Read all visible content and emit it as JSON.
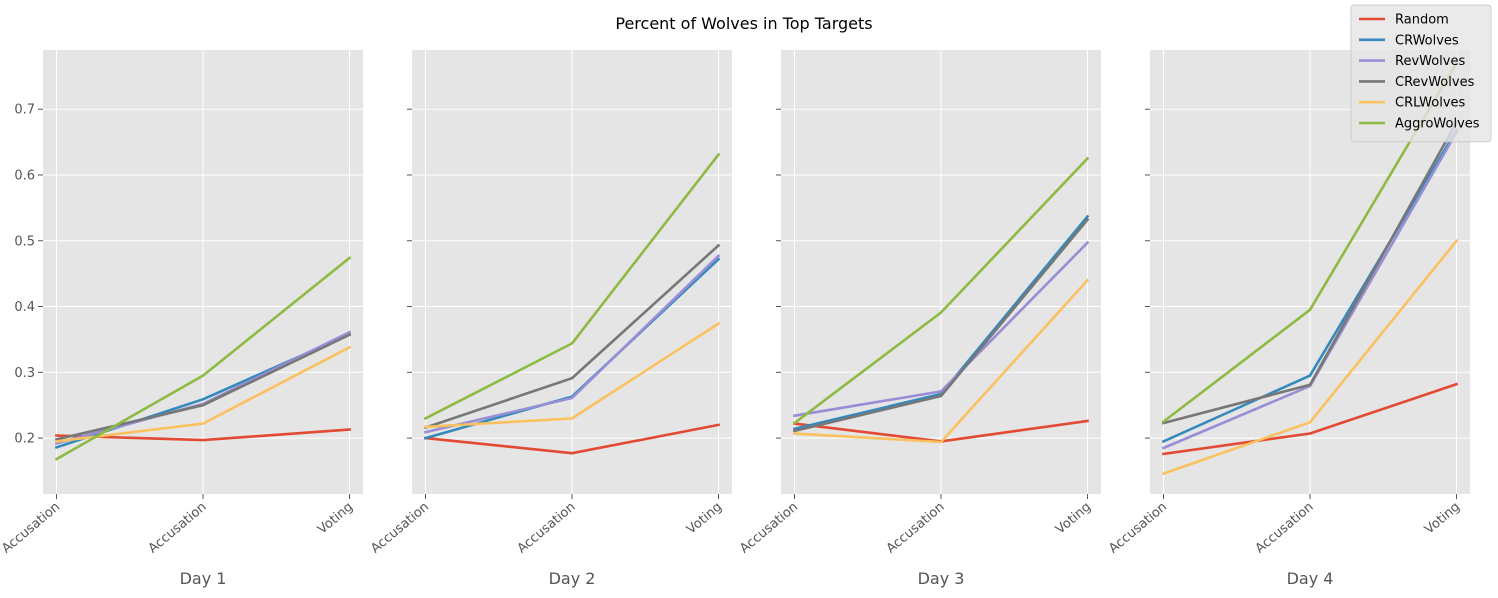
{
  "title": "Percent of Wolves in Top Targets",
  "chart_data": {
    "type": "line",
    "title": "Percent of Wolves in Top Targets",
    "ylim": [
      0.115,
      0.79
    ],
    "yticks": [
      0.2,
      0.3,
      0.4,
      0.5,
      0.6,
      0.7
    ],
    "shared_y": true,
    "grid": true,
    "legend_placement": "top-right",
    "categories": [
      "Accusation",
      "Accusation",
      "Voting"
    ],
    "series_styles": [
      {
        "name": "Random",
        "color": "#E24A33"
      },
      {
        "name": "CRWolves",
        "color": "#348ABD"
      },
      {
        "name": "RevWolves",
        "color": "#988ED5"
      },
      {
        "name": "CRevWolves",
        "color": "#777777"
      },
      {
        "name": "CRLWolves",
        "color": "#FBC15E"
      },
      {
        "name": "AggroWolves",
        "color": "#8EBA42"
      }
    ],
    "panels": [
      {
        "xlabel": "Day 1",
        "series": [
          {
            "name": "Random",
            "values": [
              0.204,
              0.197,
              0.213
            ]
          },
          {
            "name": "CRWolves",
            "values": [
              0.186,
              0.259,
              0.358
            ]
          },
          {
            "name": "RevWolves",
            "values": [
              0.192,
              0.252,
              0.361
            ]
          },
          {
            "name": "CRevWolves",
            "values": [
              0.198,
              0.25,
              0.357
            ]
          },
          {
            "name": "CRLWolves",
            "values": [
              0.195,
              0.222,
              0.338
            ]
          },
          {
            "name": "AggroWolves",
            "values": [
              0.168,
              0.295,
              0.474
            ]
          }
        ]
      },
      {
        "xlabel": "Day 2",
        "series": [
          {
            "name": "Random",
            "values": [
              0.2,
              0.177,
              0.22
            ]
          },
          {
            "name": "CRWolves",
            "values": [
              0.2,
              0.263,
              0.472
            ]
          },
          {
            "name": "RevWolves",
            "values": [
              0.209,
              0.261,
              0.477
            ]
          },
          {
            "name": "CRevWolves",
            "values": [
              0.216,
              0.291,
              0.493
            ]
          },
          {
            "name": "CRLWolves",
            "values": [
              0.217,
              0.23,
              0.374
            ]
          },
          {
            "name": "AggroWolves",
            "values": [
              0.23,
              0.344,
              0.631
            ]
          }
        ]
      },
      {
        "xlabel": "Day 3",
        "series": [
          {
            "name": "Random",
            "values": [
              0.222,
              0.195,
              0.226
            ]
          },
          {
            "name": "CRWolves",
            "values": [
              0.214,
              0.267,
              0.537
            ]
          },
          {
            "name": "RevWolves",
            "values": [
              0.234,
              0.271,
              0.497
            ]
          },
          {
            "name": "CRevWolves",
            "values": [
              0.211,
              0.264,
              0.532
            ]
          },
          {
            "name": "CRLWolves",
            "values": [
              0.207,
              0.194,
              0.44
            ]
          },
          {
            "name": "AggroWolves",
            "values": [
              0.223,
              0.391,
              0.625
            ]
          }
        ]
      },
      {
        "xlabel": "Day 4",
        "series": [
          {
            "name": "Random",
            "values": [
              0.176,
              0.207,
              0.282
            ]
          },
          {
            "name": "CRWolves",
            "values": [
              0.195,
              0.295,
              0.668
            ]
          },
          {
            "name": "RevWolves",
            "values": [
              0.185,
              0.279,
              0.665
            ]
          },
          {
            "name": "CRevWolves",
            "values": [
              0.223,
              0.281,
              0.68
            ]
          },
          {
            "name": "CRLWolves",
            "values": [
              0.146,
              0.224,
              0.5
            ]
          },
          {
            "name": "AggroWolves",
            "values": [
              0.225,
              0.395,
              0.77
            ]
          }
        ]
      }
    ]
  }
}
